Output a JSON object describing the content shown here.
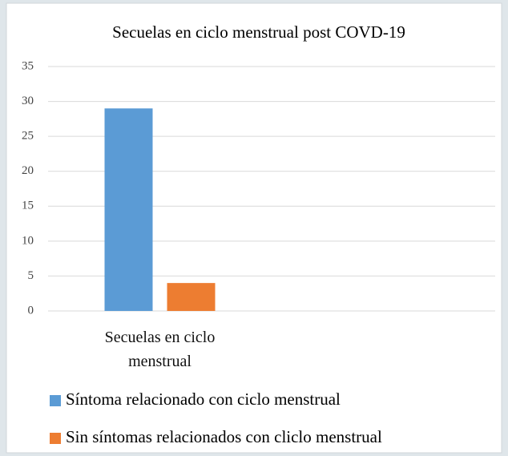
{
  "chart_data": {
    "type": "bar",
    "title": "Secuelas en ciclo menstrual post COVD-19",
    "categories": [
      "Secuelas en ciclo menstrual",
      null
    ],
    "series": [
      {
        "name": "Síntoma relacionado con ciclo menstrual",
        "color": "#5b9bd5",
        "values": [
          29,
          null
        ]
      },
      {
        "name": "Sin síntomas relacionados con cliclo menstrual",
        "color": "#ed7d31",
        "values": [
          4,
          null
        ]
      }
    ],
    "ylim": [
      0,
      35
    ],
    "yticks": [
      0,
      5,
      10,
      15,
      20,
      25,
      30,
      35
    ],
    "grid": true,
    "legend": "bottom"
  }
}
